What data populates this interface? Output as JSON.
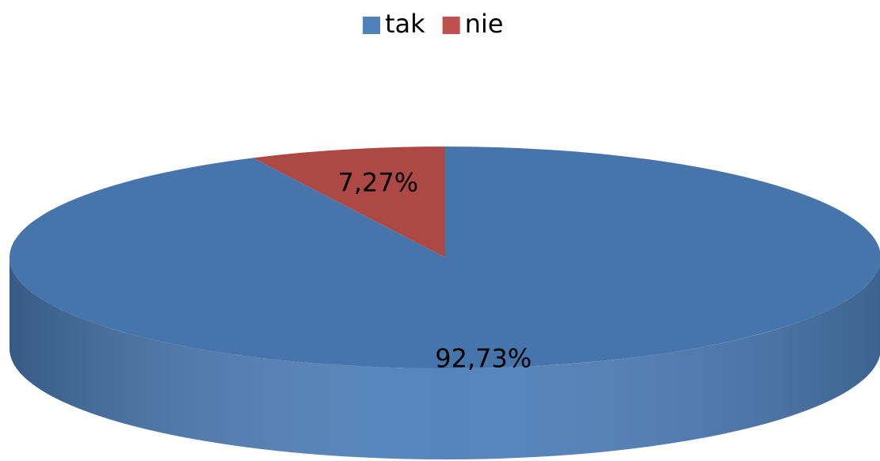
{
  "chart_data": {
    "type": "pie3d",
    "categories": [
      "tak",
      "nie"
    ],
    "values": [
      92.73,
      7.27
    ],
    "value_labels": [
      "92,73%",
      "7,27%"
    ],
    "colors": [
      "#4f81bd",
      "#c0504d"
    ],
    "legend": "top"
  }
}
